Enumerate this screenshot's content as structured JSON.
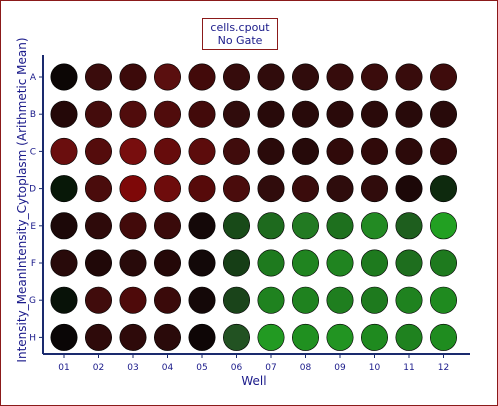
{
  "legend": {
    "line1": "cells.cpout",
    "line2": "No Gate"
  },
  "chart_data": {
    "type": "heatmap",
    "xlabel": "Well",
    "ylabel": "Intensity_MeanIntensity_Cytoplasm (Arithmetic Mean)",
    "columns": [
      "01",
      "02",
      "03",
      "04",
      "05",
      "06",
      "07",
      "08",
      "09",
      "10",
      "11",
      "12"
    ],
    "rows": [
      "A",
      "B",
      "C",
      "D",
      "E",
      "F",
      "G",
      "H"
    ],
    "colors": {
      "axis": "#1a2a6e",
      "text": "#1a1a8a",
      "frame": "#8b1a1a"
    },
    "cell_colors": [
      [
        "#0c0605",
        "#3a0c0c",
        "#3c0a0a",
        "#5a0f0f",
        "#420a0a",
        "#360c0c",
        "#300c0c",
        "#300c0c",
        "#360c0c",
        "#3a0c0c",
        "#380c0c",
        "#3e0c0c"
      ],
      [
        "#240808",
        "#440c0c",
        "#500c0c",
        "#500c0c",
        "#420a0a",
        "#300c0c",
        "#280a0a",
        "#280a0a",
        "#2a0a0a",
        "#2a0a0a",
        "#280a0a",
        "#280a0a"
      ],
      [
        "#6a0e0e",
        "#540c0c",
        "#780e0e",
        "#660c0c",
        "#5c0c0c",
        "#400c0c",
        "#2a0a0a",
        "#260a0a",
        "#300a0a",
        "#300a0a",
        "#2c0a0a",
        "#300a0a"
      ],
      [
        "#081808",
        "#4a0c0c",
        "#7e0808",
        "#6e0c0c",
        "#560a0a",
        "#4a0c0c",
        "#300c0c",
        "#3a0c0c",
        "#2e0c0c",
        "#300c0c",
        "#1c0808",
        "#0e2a0e"
      ],
      [
        "#1c0808",
        "#2e0a0a",
        "#420a0a",
        "#3a0a0a",
        "#140808",
        "#184a18",
        "#1e6a1e",
        "#227a22",
        "#1e701e",
        "#238a23",
        "#1e5e1e",
        "#22a022"
      ],
      [
        "#280a0a",
        "#200808",
        "#280a0a",
        "#240808",
        "#120808",
        "#163e16",
        "#1e7a1e",
        "#208420",
        "#208420",
        "#1e7a1e",
        "#1e6e1e",
        "#1e7a1e"
      ],
      [
        "#081208",
        "#400c0c",
        "#4e0a0a",
        "#3a0a0a",
        "#140808",
        "#1a441a",
        "#1f821f",
        "#1f821f",
        "#1f7e1f",
        "#1e7a1e",
        "#1f821f",
        "#1f8a1f"
      ],
      [
        "#0a0606",
        "#2e0a0a",
        "#2e0a0a",
        "#2a0a0a",
        "#0e0606",
        "#225222",
        "#229a22",
        "#209020",
        "#229422",
        "#1f8a1f",
        "#1f821f",
        "#1f8c1f"
      ]
    ]
  }
}
